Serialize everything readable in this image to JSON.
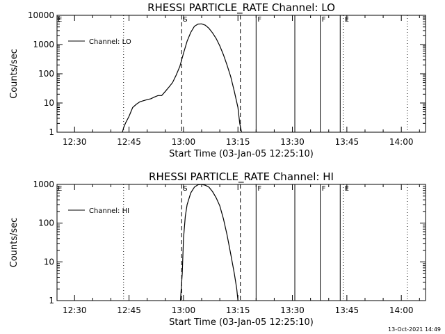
{
  "timestamp": "13-Oct-2021 14:49",
  "chart_data": [
    {
      "type": "line",
      "title": "RHESSI PARTICLE_RATE Channel: LO",
      "xlabel": "Start Time (03-Jan-05 12:25:10)",
      "ylabel": "Counts/sec",
      "yscale": "log",
      "xlim": [
        "12:25:10",
        "14:06:40"
      ],
      "ylim": [
        1,
        10000
      ],
      "x_ticks": [
        "12:30",
        "12:45",
        "13:00",
        "13:15",
        "13:30",
        "13:45",
        "14:00"
      ],
      "y_ticks": [
        "1",
        "10",
        "100",
        "1000",
        "10000"
      ],
      "legend": {
        "label": "Channel: LO",
        "position": "top-left"
      },
      "series": [
        {
          "name": "Channel: LO",
          "x": [
            "12:43:10",
            "12:43:30",
            "12:44:00",
            "12:45:00",
            "12:46:00",
            "12:47:00",
            "12:48:00",
            "12:49:00",
            "12:50:00",
            "12:51:00",
            "12:52:00",
            "12:53:00",
            "12:54:00",
            "12:55:00",
            "12:56:00",
            "12:57:00",
            "12:58:00",
            "12:59:00",
            "13:00:00",
            "13:01:00",
            "13:02:00",
            "13:03:00",
            "13:04:00",
            "13:05:00",
            "13:06:00",
            "13:07:00",
            "13:08:00",
            "13:09:00",
            "13:10:00",
            "13:11:00",
            "13:12:00",
            "13:13:00",
            "13:14:00",
            "13:15:00",
            "13:15:30",
            "13:16:00"
          ],
          "values": [
            1,
            1.4,
            2,
            3.5,
            7,
            9,
            11,
            12,
            13,
            14,
            16,
            18,
            18,
            25,
            35,
            50,
            90,
            180,
            500,
            1300,
            2600,
            4200,
            5000,
            5100,
            4600,
            3600,
            2500,
            1600,
            900,
            450,
            200,
            80,
            25,
            7,
            2,
            1
          ]
        }
      ],
      "markers": [
        {
          "label": "",
          "time": "12:43:30",
          "style": "dotted"
        },
        {
          "label": "S",
          "time": "12:59:30",
          "style": "dashed"
        },
        {
          "label": "",
          "time": "13:15:40",
          "style": "dashed"
        },
        {
          "label": "F",
          "time": "13:20:00",
          "style": "solid"
        },
        {
          "label": "",
          "time": "13:30:40",
          "style": "solid"
        },
        {
          "label": "F",
          "time": "13:37:40",
          "style": "solid"
        },
        {
          "label": "",
          "time": "13:43:10",
          "style": "solid"
        },
        {
          "label": "E",
          "time": "13:44:00",
          "style": "dotted"
        },
        {
          "label": "",
          "time": "14:01:40",
          "style": "dotted"
        }
      ],
      "corner_label": "E"
    },
    {
      "type": "line",
      "title": "RHESSI PARTICLE_RATE Channel: HI",
      "xlabel": "Start Time (03-Jan-05 12:25:10)",
      "ylabel": "Counts/sec",
      "yscale": "log",
      "xlim": [
        "12:25:10",
        "14:06:40"
      ],
      "ylim": [
        1,
        1000
      ],
      "x_ticks": [
        "12:30",
        "12:45",
        "13:00",
        "13:15",
        "13:30",
        "13:45",
        "14:00"
      ],
      "y_ticks": [
        "1",
        "10",
        "100",
        "1000"
      ],
      "legend": {
        "label": "Channel: HI",
        "position": "top-left"
      },
      "series": [
        {
          "name": "Channel: HI",
          "x": [
            "12:59:10",
            "12:59:40",
            "13:00:00",
            "13:00:30",
            "13:01:00",
            "13:02:00",
            "13:03:00",
            "13:04:00",
            "13:05:00",
            "13:06:00",
            "13:07:00",
            "13:08:00",
            "13:09:00",
            "13:10:00",
            "13:11:00",
            "13:12:00",
            "13:13:00",
            "13:14:00",
            "13:14:40",
            "13:15:00"
          ],
          "values": [
            1,
            5,
            40,
            150,
            300,
            600,
            850,
            980,
            1000,
            950,
            850,
            650,
            450,
            280,
            130,
            50,
            16,
            5,
            2,
            1
          ]
        }
      ],
      "markers": [
        {
          "label": "",
          "time": "12:43:30",
          "style": "dotted"
        },
        {
          "label": "S",
          "time": "12:59:30",
          "style": "dashed"
        },
        {
          "label": "",
          "time": "13:15:40",
          "style": "dashed"
        },
        {
          "label": "F",
          "time": "13:20:00",
          "style": "solid"
        },
        {
          "label": "",
          "time": "13:30:40",
          "style": "solid"
        },
        {
          "label": "F",
          "time": "13:37:40",
          "style": "solid"
        },
        {
          "label": "",
          "time": "13:43:10",
          "style": "solid"
        },
        {
          "label": "E",
          "time": "13:44:00",
          "style": "dotted"
        },
        {
          "label": "",
          "time": "14:01:40",
          "style": "dotted"
        }
      ],
      "corner_label": "E"
    }
  ]
}
